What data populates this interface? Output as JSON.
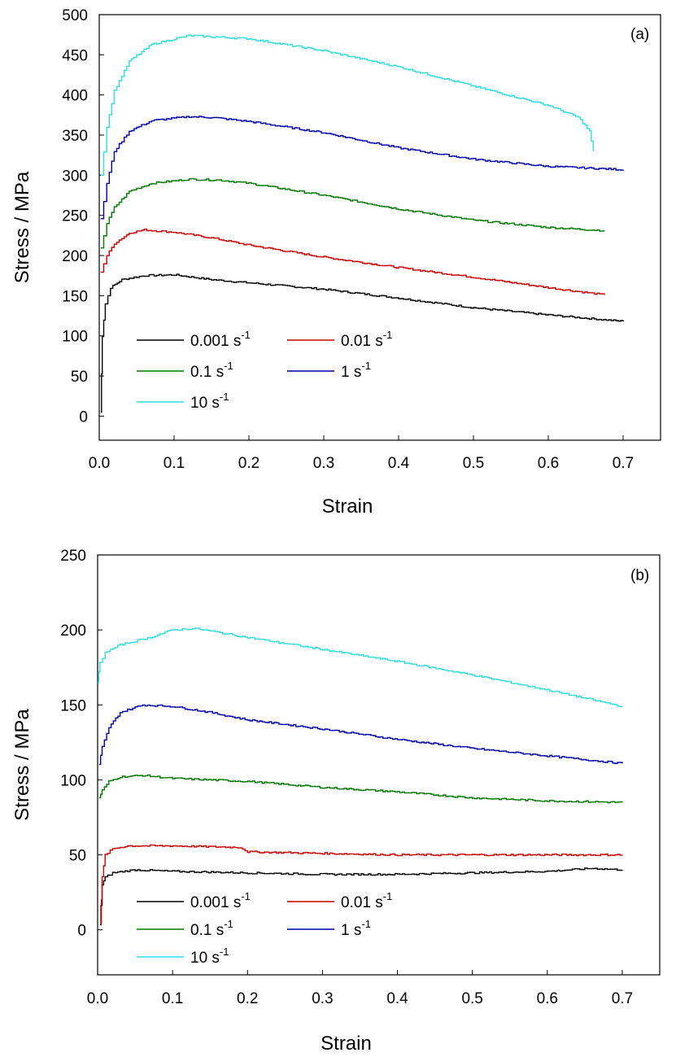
{
  "charts": [
    {
      "type": "line",
      "panel_label": "(a)",
      "xlabel": "Strain",
      "ylabel": "Stress / MPa",
      "xlim": [
        0.0,
        0.75
      ],
      "ylim": [
        -30,
        500
      ],
      "x_ticks": [
        "0.0",
        "0.1",
        "0.2",
        "0.3",
        "0.4",
        "0.5",
        "0.6",
        "0.7"
      ],
      "y_ticks": [
        "0",
        "50",
        "100",
        "150",
        "200",
        "250",
        "300",
        "350",
        "400",
        "450",
        "500"
      ],
      "legend": {
        "columns": 2,
        "placement": "lower-left"
      },
      "series": [
        {
          "name": "0.001 s",
          "sup": "-1",
          "color": "#000000",
          "points": [
            [
              0.002,
              5
            ],
            [
              0.004,
              100
            ],
            [
              0.008,
              140
            ],
            [
              0.015,
              160
            ],
            [
              0.03,
              170
            ],
            [
              0.06,
              175
            ],
            [
              0.1,
              176
            ],
            [
              0.15,
              170
            ],
            [
              0.2,
              166
            ],
            [
              0.3,
              158
            ],
            [
              0.4,
              147
            ],
            [
              0.5,
              135
            ],
            [
              0.6,
              126
            ],
            [
              0.7,
              118
            ]
          ]
        },
        {
          "name": "0.01 s",
          "sup": "-1",
          "color": "#cc0000",
          "points": [
            [
              0.002,
              180
            ],
            [
              0.01,
              200
            ],
            [
              0.02,
              215
            ],
            [
              0.04,
              228
            ],
            [
              0.06,
              232
            ],
            [
              0.1,
              229
            ],
            [
              0.15,
              222
            ],
            [
              0.2,
              213
            ],
            [
              0.3,
              198
            ],
            [
              0.4,
              185
            ],
            [
              0.5,
              173
            ],
            [
              0.6,
              160
            ],
            [
              0.675,
              151
            ]
          ]
        },
        {
          "name": "0.1 s",
          "sup": "-1",
          "color": "#007700",
          "points": [
            [
              0.002,
              210
            ],
            [
              0.01,
              240
            ],
            [
              0.02,
              260
            ],
            [
              0.04,
              280
            ],
            [
              0.07,
              290
            ],
            [
              0.12,
              295
            ],
            [
              0.16,
              294
            ],
            [
              0.2,
              290
            ],
            [
              0.3,
              275
            ],
            [
              0.4,
              258
            ],
            [
              0.5,
              244
            ],
            [
              0.6,
              235
            ],
            [
              0.675,
              231
            ]
          ]
        },
        {
          "name": "1 s",
          "sup": "-1",
          "color": "#0000aa",
          "points": [
            [
              0.002,
              245
            ],
            [
              0.01,
              290
            ],
            [
              0.02,
              330
            ],
            [
              0.04,
              355
            ],
            [
              0.07,
              368
            ],
            [
              0.12,
              373
            ],
            [
              0.15,
              372
            ],
            [
              0.2,
              367
            ],
            [
              0.3,
              353
            ],
            [
              0.4,
              334
            ],
            [
              0.5,
              320
            ],
            [
              0.6,
              311
            ],
            [
              0.7,
              307
            ]
          ]
        },
        {
          "name": "10 s",
          "sup": "-1",
          "color": "#33dddd",
          "points": [
            [
              0.002,
              300
            ],
            [
              0.01,
              360
            ],
            [
              0.02,
              405
            ],
            [
              0.04,
              442
            ],
            [
              0.07,
              463
            ],
            [
              0.12,
              474
            ],
            [
              0.2,
              470
            ],
            [
              0.3,
              455
            ],
            [
              0.4,
              435
            ],
            [
              0.5,
              411
            ],
            [
              0.6,
              387
            ],
            [
              0.64,
              372
            ],
            [
              0.655,
              355
            ],
            [
              0.66,
              330
            ]
          ]
        }
      ]
    },
    {
      "type": "line",
      "panel_label": "(b)",
      "xlabel": "Strain",
      "ylabel": "Stress / MPa",
      "xlim": [
        0.0,
        0.75
      ],
      "ylim": [
        -30,
        250
      ],
      "x_ticks": [
        "0.0",
        "0.1",
        "0.2",
        "0.3",
        "0.4",
        "0.5",
        "0.6",
        "0.7"
      ],
      "y_ticks": [
        "0",
        "50",
        "100",
        "150",
        "200",
        "250"
      ],
      "legend": {
        "columns": 2,
        "placement": "lower-left"
      },
      "series": [
        {
          "name": "0.001 s",
          "sup": "-1",
          "color": "#000000",
          "points": [
            [
              0.003,
              3
            ],
            [
              0.006,
              30
            ],
            [
              0.01,
              35
            ],
            [
              0.02,
              38
            ],
            [
              0.05,
              40
            ],
            [
              0.1,
              39
            ],
            [
              0.2,
              38
            ],
            [
              0.3,
              37
            ],
            [
              0.4,
              37
            ],
            [
              0.5,
              38
            ],
            [
              0.6,
              39
            ],
            [
              0.66,
              41
            ],
            [
              0.7,
              40
            ]
          ]
        },
        {
          "name": "0.01 s",
          "sup": "-1",
          "color": "#cc0000",
          "points": [
            [
              0.004,
              5
            ],
            [
              0.006,
              35
            ],
            [
              0.01,
              50
            ],
            [
              0.02,
              54
            ],
            [
              0.04,
              56
            ],
            [
              0.1,
              56
            ],
            [
              0.19,
              55
            ],
            [
              0.2,
              52
            ],
            [
              0.3,
              51
            ],
            [
              0.4,
              50
            ],
            [
              0.5,
              50
            ],
            [
              0.6,
              50
            ],
            [
              0.7,
              50
            ]
          ]
        },
        {
          "name": "0.1 s",
          "sup": "-1",
          "color": "#007700",
          "points": [
            [
              0.002,
              88
            ],
            [
              0.006,
              93
            ],
            [
              0.015,
              99
            ],
            [
              0.03,
              102
            ],
            [
              0.06,
              103
            ],
            [
              0.1,
              101
            ],
            [
              0.2,
              99
            ],
            [
              0.3,
              95
            ],
            [
              0.4,
              92
            ],
            [
              0.5,
              88
            ],
            [
              0.6,
              86
            ],
            [
              0.7,
              85
            ]
          ]
        },
        {
          "name": "1 s",
          "sup": "-1",
          "color": "#0000aa",
          "points": [
            [
              0.002,
              110
            ],
            [
              0.006,
              122
            ],
            [
              0.015,
              135
            ],
            [
              0.03,
              145
            ],
            [
              0.06,
              150
            ],
            [
              0.1,
              149
            ],
            [
              0.15,
              145
            ],
            [
              0.2,
              140
            ],
            [
              0.3,
              134
            ],
            [
              0.4,
              127
            ],
            [
              0.5,
              121
            ],
            [
              0.6,
              116
            ],
            [
              0.7,
              111
            ]
          ]
        },
        {
          "name": "10 s",
          "sup": "-1",
          "color": "#33dddd",
          "points": [
            [
              0.0,
              165
            ],
            [
              0.003,
              178
            ],
            [
              0.01,
              185
            ],
            [
              0.03,
              190
            ],
            [
              0.07,
              195
            ],
            [
              0.1,
              200
            ],
            [
              0.13,
              201
            ],
            [
              0.2,
              195
            ],
            [
              0.3,
              187
            ],
            [
              0.4,
              179
            ],
            [
              0.5,
              170
            ],
            [
              0.6,
              160
            ],
            [
              0.7,
              149
            ]
          ]
        }
      ]
    }
  ]
}
